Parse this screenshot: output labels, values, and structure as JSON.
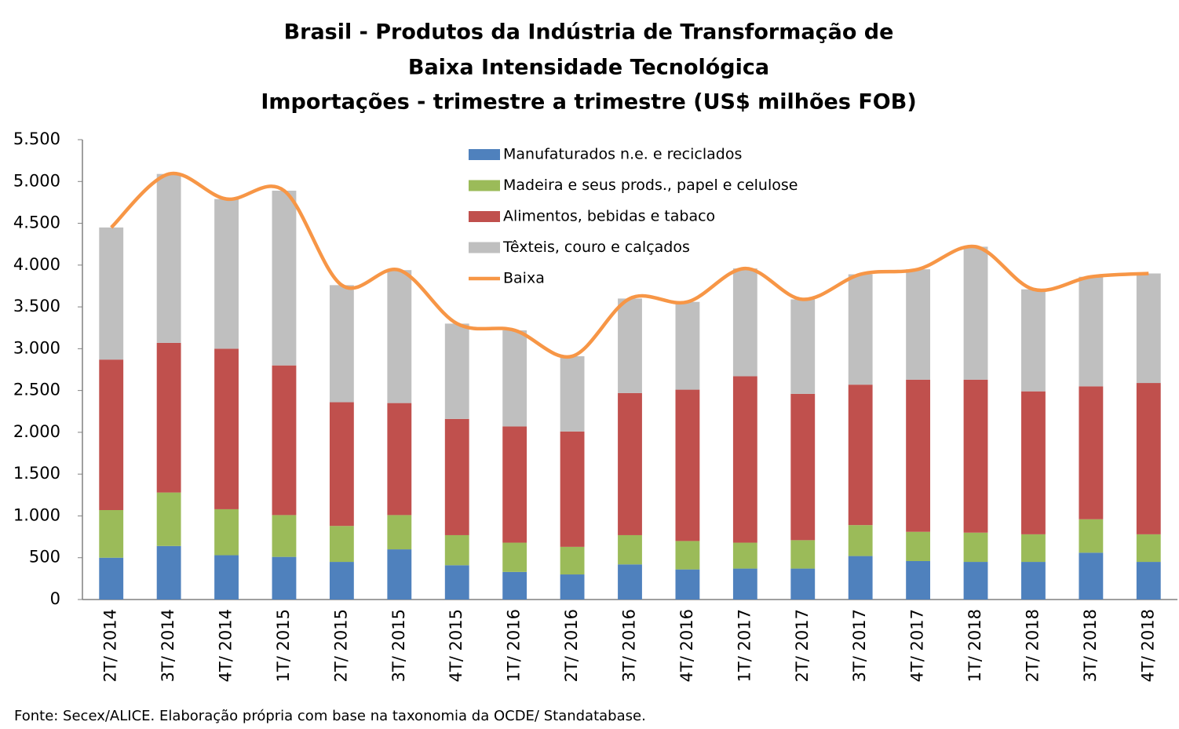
{
  "chart_data": {
    "type": "stacked_bar_line",
    "title": [
      "Brasil - Produtos da Indústria de Transformação de",
      "Baixa Intensidade Tecnológica",
      "Importações - trimestre a trimestre (US$ milhões FOB)"
    ],
    "categories": [
      "2T/ 2014",
      "3T/ 2014",
      "4T/ 2014",
      "1T/ 2015",
      "2T/ 2015",
      "3T/ 2015",
      "4T/ 2015",
      "1T/ 2016",
      "2T/ 2016",
      "3T/ 2016",
      "4T/ 2016",
      "1T/ 2017",
      "2T/ 2017",
      "3T/ 2017",
      "4T/ 2017",
      "1T/ 2018",
      "2T/ 2018",
      "3T/ 2018",
      "4T/ 2018"
    ],
    "series": [
      {
        "name": "Manufaturados n.e. e reciclados",
        "color": "#4f81bd",
        "kind": "bar",
        "values": [
          500,
          640,
          530,
          510,
          450,
          600,
          410,
          330,
          300,
          420,
          360,
          370,
          370,
          520,
          460,
          450,
          450,
          560,
          450
        ]
      },
      {
        "name": "Madeira e seus prods., papel e celulose",
        "color": "#9bbb59",
        "kind": "bar",
        "values": [
          570,
          640,
          550,
          500,
          430,
          410,
          360,
          350,
          330,
          350,
          340,
          310,
          340,
          370,
          350,
          350,
          330,
          400,
          330
        ]
      },
      {
        "name": "Alimentos, bebidas e tabaco",
        "color": "#c0504d",
        "kind": "bar",
        "values": [
          1800,
          1790,
          1920,
          1790,
          1480,
          1340,
          1390,
          1390,
          1380,
          1700,
          1810,
          1990,
          1750,
          1680,
          1820,
          1830,
          1710,
          1590,
          1810
        ]
      },
      {
        "name": "Têxteis, couro e calçados",
        "color": "#bfbfbf",
        "kind": "bar",
        "values": [
          1580,
          2020,
          1790,
          2090,
          1400,
          1590,
          1140,
          1150,
          900,
          1130,
          1050,
          1290,
          1130,
          1320,
          1320,
          1590,
          1220,
          1310,
          1310
        ]
      },
      {
        "name": "Baixa",
        "color": "#f79646",
        "kind": "line",
        "values": [
          4450,
          5090,
          4790,
          4890,
          3760,
          3940,
          3300,
          3220,
          2910,
          3600,
          3560,
          3960,
          3590,
          3890,
          3950,
          4220,
          3710,
          3860,
          3900
        ]
      }
    ],
    "ylim": [
      0,
      5500
    ],
    "yticks": [
      0,
      500,
      {
        "value": 1000,
        "label": "1.000"
      },
      {
        "value": 1500,
        "label": "1.500"
      },
      {
        "value": 2000,
        "label": "2.000"
      },
      {
        "value": 2500,
        "label": "2.500"
      },
      {
        "value": 3000,
        "label": "3.000"
      },
      {
        "value": 3500,
        "label": "3.500"
      },
      {
        "value": 4000,
        "label": "4.000"
      },
      {
        "value": 4500,
        "label": "4.500"
      },
      {
        "value": 5000,
        "label": "5.000"
      },
      {
        "value": 5500,
        "label": "5.500"
      }
    ],
    "legend": "top",
    "source": "Fonte: Secex/ALICE. Elaboração própria com base na taxonomia da OCDE/ Standatabase."
  }
}
